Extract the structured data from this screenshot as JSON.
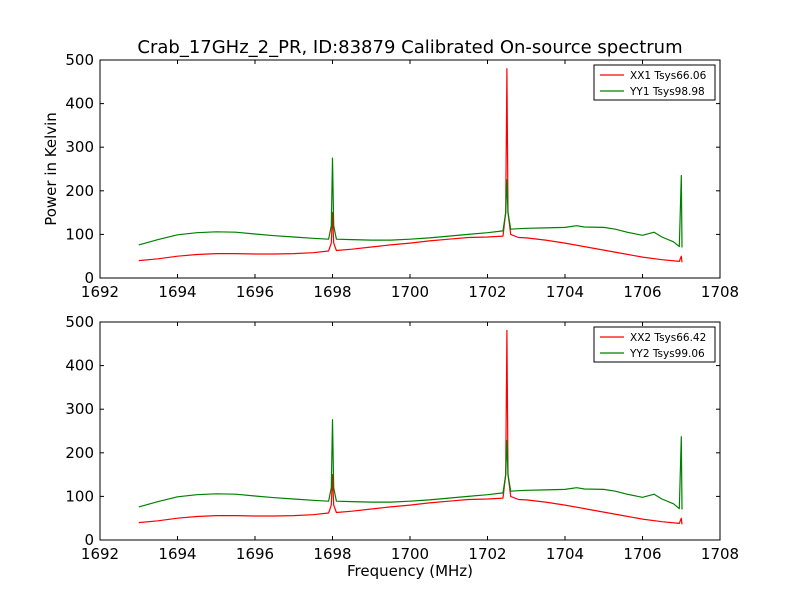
{
  "chart_data": {
    "type": "line",
    "title": "Crab_17GHz_2_PR, ID:83879 Calibrated On-source spectrum",
    "xlabel": "Frequency (MHz)",
    "ylabel": "Power in Kelvin",
    "xlim": [
      1692,
      1708
    ],
    "ylim": [
      0,
      500
    ],
    "xticks": [
      "1692",
      "1694",
      "1696",
      "1698",
      "1700",
      "1702",
      "1704",
      "1706",
      "1708"
    ],
    "yticks": [
      "0",
      "100",
      "200",
      "300",
      "400",
      "500"
    ],
    "grid": false,
    "legend_position": "top-right",
    "colors": {
      "xx": "#ff0000",
      "yy": "#008000"
    },
    "panels": [
      {
        "series": [
          {
            "name": "XX1 Tsys66.06",
            "color": "#ff0000",
            "x": [
              1693.0,
              1693.5,
              1694.0,
              1694.5,
              1695.0,
              1695.5,
              1696.0,
              1696.5,
              1697.0,
              1697.5,
              1697.9,
              1697.97,
              1698.0,
              1698.03,
              1698.1,
              1698.5,
              1699.0,
              1699.5,
              1700.0,
              1700.5,
              1701.0,
              1701.5,
              1702.0,
              1702.4,
              1702.47,
              1702.5,
              1702.53,
              1702.6,
              1702.8,
              1703.0,
              1703.5,
              1704.0,
              1704.5,
              1705.0,
              1705.5,
              1706.0,
              1706.5,
              1706.95,
              1707.0,
              1707.02
            ],
            "y": [
              40,
              44,
              50,
              54,
              56,
              56,
              55,
              55,
              56,
              58,
              62,
              80,
              150,
              80,
              63,
              66,
              71,
              76,
              80,
              85,
              89,
              93,
              94,
              96,
              150,
              480,
              150,
              100,
              93,
              92,
              87,
              80,
              72,
              64,
              56,
              48,
              42,
              38,
              50,
              36
            ]
          },
          {
            "name": "YY1 Tsys98.98",
            "color": "#008000",
            "x": [
              1693.0,
              1693.5,
              1694.0,
              1694.5,
              1695.0,
              1695.5,
              1696.0,
              1696.5,
              1697.0,
              1697.5,
              1697.9,
              1697.97,
              1698.0,
              1698.03,
              1698.1,
              1698.5,
              1699.0,
              1699.5,
              1700.0,
              1700.5,
              1701.0,
              1701.5,
              1702.0,
              1702.4,
              1702.47,
              1702.5,
              1702.53,
              1702.6,
              1702.8,
              1703.0,
              1703.5,
              1704.0,
              1704.3,
              1704.5,
              1705.0,
              1705.3,
              1705.6,
              1706.0,
              1706.3,
              1706.5,
              1706.8,
              1706.95,
              1707.0,
              1707.02
            ],
            "y": [
              76,
              88,
              99,
              104,
              106,
              105,
              101,
              97,
              94,
              91,
              89,
              120,
              275,
              120,
              89,
              88,
              87,
              87,
              89,
              92,
              96,
              100,
              104,
              108,
              150,
              225,
              150,
              112,
              113,
              114,
              115,
              116,
              120,
              117,
              116,
              112,
              105,
              98,
              105,
              94,
              83,
              72,
              235,
              70
            ]
          }
        ]
      },
      {
        "series": [
          {
            "name": "XX2 Tsys66.42",
            "color": "#ff0000",
            "x": [
              1693.0,
              1693.5,
              1694.0,
              1694.5,
              1695.0,
              1695.5,
              1696.0,
              1696.5,
              1697.0,
              1697.5,
              1697.9,
              1697.97,
              1698.0,
              1698.03,
              1698.1,
              1698.5,
              1699.0,
              1699.5,
              1700.0,
              1700.5,
              1701.0,
              1701.5,
              1702.0,
              1702.4,
              1702.47,
              1702.5,
              1702.53,
              1702.6,
              1702.8,
              1703.0,
              1703.5,
              1704.0,
              1704.5,
              1705.0,
              1705.5,
              1706.0,
              1706.5,
              1706.95,
              1707.0,
              1707.02
            ],
            "y": [
              40,
              44,
              50,
              54,
              56,
              56,
              55,
              55,
              56,
              58,
              62,
              80,
              150,
              80,
              63,
              66,
              71,
              76,
              80,
              85,
              89,
              93,
              94,
              96,
              150,
              481,
              150,
              100,
              93,
              92,
              87,
              80,
              72,
              64,
              56,
              48,
              42,
              38,
              50,
              36
            ]
          },
          {
            "name": "YY2 Tsys99.06",
            "color": "#008000",
            "x": [
              1693.0,
              1693.5,
              1694.0,
              1694.5,
              1695.0,
              1695.5,
              1696.0,
              1696.5,
              1697.0,
              1697.5,
              1697.9,
              1697.97,
              1698.0,
              1698.03,
              1698.1,
              1698.5,
              1699.0,
              1699.5,
              1700.0,
              1700.5,
              1701.0,
              1701.5,
              1702.0,
              1702.4,
              1702.47,
              1702.5,
              1702.53,
              1702.6,
              1702.8,
              1703.0,
              1703.5,
              1704.0,
              1704.3,
              1704.5,
              1705.0,
              1705.3,
              1705.6,
              1706.0,
              1706.3,
              1706.5,
              1706.8,
              1706.95,
              1707.0,
              1707.02
            ],
            "y": [
              76,
              88,
              99,
              104,
              106,
              105,
              101,
              97,
              94,
              91,
              89,
              120,
              276,
              120,
              89,
              88,
              87,
              87,
              89,
              92,
              96,
              100,
              104,
              108,
              150,
              228,
              150,
              112,
              113,
              114,
              115,
              116,
              120,
              117,
              116,
              112,
              105,
              98,
              105,
              94,
              83,
              72,
              237,
              70
            ]
          }
        ]
      }
    ]
  }
}
